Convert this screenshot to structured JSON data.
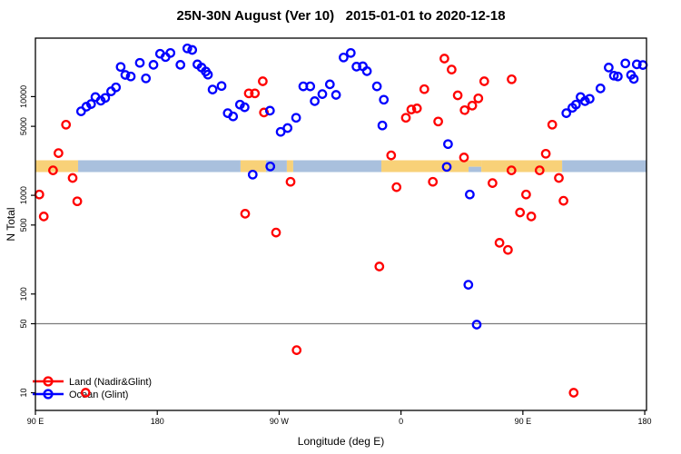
{
  "title": "25N-30N August (Ver 10)   2015-01-01 to 2020-12-18",
  "x_axis": {
    "label": "Longitude (deg E)",
    "ticks": [
      {
        "lon": 90,
        "label": "90 E"
      },
      {
        "lon": 180,
        "label": "180"
      },
      {
        "lon": 270,
        "label": "90 W"
      },
      {
        "lon": 360,
        "label": "0"
      },
      {
        "lon": 450,
        "label": "90 E"
      },
      {
        "lon": 540,
        "label": "180"
      }
    ]
  },
  "y_axis": {
    "label": "N Total",
    "scale": "log",
    "ticks": [
      10,
      50,
      100,
      500,
      1000,
      5000,
      10000
    ]
  },
  "reference_line": {
    "value": 50,
    "color": "#7a7a7a"
  },
  "map_band": {
    "value_center": 2000,
    "colors": {
      "land": "#F8D178",
      "ocean": "#A9C0DD"
    },
    "segments": [
      {
        "from": 90,
        "to": 121.5,
        "surface": "land"
      },
      {
        "from": 121.5,
        "to": 241.5,
        "surface": "ocean"
      },
      {
        "from": 241.5,
        "to": 260.3,
        "surface": "land"
      },
      {
        "from": 260.3,
        "to": 275.7,
        "surface": "ocean"
      },
      {
        "from": 275.7,
        "to": 280.4,
        "surface": "land"
      },
      {
        "from": 280.4,
        "to": 345.5,
        "surface": "ocean"
      },
      {
        "from": 345.5,
        "to": 409.9,
        "surface": "land"
      },
      {
        "from": 409.9,
        "to": 419.3,
        "surface": "mixed"
      },
      {
        "from": 419.3,
        "to": 479.0,
        "surface": "land"
      },
      {
        "from": 479.0,
        "to": 541.3,
        "surface": "ocean"
      }
    ]
  },
  "legend": {
    "items": [
      {
        "label": "Land (Nadir&Glint)",
        "color": "#FF0000"
      },
      {
        "label": "Ocean (Glint)",
        "color": "#0000FF"
      }
    ]
  },
  "chart_data": {
    "type": "scatter",
    "x_unit": "degrees east (wrapped, 90E to 180 spanning 450 deg)",
    "x_range_deg_east": [
      90,
      541
    ],
    "y_range": [
      7,
      39000
    ],
    "marker": {
      "shape": "open-circle",
      "radius": 4.2
    },
    "series": [
      {
        "name": "Land (Nadir&Glint)",
        "color": "#FF0000",
        "points": [
          [
            92.9,
            1020
          ],
          [
            96.2,
            610
          ],
          [
            103.0,
            1790
          ],
          [
            107.0,
            2680
          ],
          [
            112.6,
            5200
          ],
          [
            117.5,
            1500
          ],
          [
            120.9,
            870
          ],
          [
            127.1,
            10
          ],
          [
            244.9,
            650
          ],
          [
            247.6,
            10800
          ],
          [
            252.1,
            10800
          ],
          [
            257.9,
            14300
          ],
          [
            258.8,
            6900
          ],
          [
            267.7,
            420
          ],
          [
            278.4,
            1370
          ],
          [
            282.9,
            27
          ],
          [
            344.0,
            190
          ],
          [
            352.7,
            2540
          ],
          [
            356.7,
            1210
          ],
          [
            363.6,
            6100
          ],
          [
            367.6,
            7400
          ],
          [
            371.8,
            7600
          ],
          [
            377.2,
            11900
          ],
          [
            383.5,
            1370
          ],
          [
            387.5,
            5600
          ],
          [
            392.0,
            24300
          ],
          [
            397.4,
            18800
          ],
          [
            401.9,
            10300
          ],
          [
            406.5,
            2420
          ],
          [
            407.0,
            7300
          ],
          [
            412.6,
            8100
          ],
          [
            417.1,
            9600
          ],
          [
            421.5,
            14300
          ],
          [
            427.6,
            1330
          ],
          [
            432.7,
            330
          ],
          [
            439.0,
            280
          ],
          [
            441.7,
            15000
          ],
          [
            441.6,
            1790
          ],
          [
            447.9,
            670
          ],
          [
            452.4,
            1020
          ],
          [
            456.2,
            610
          ],
          [
            462.4,
            1790
          ],
          [
            466.9,
            2640
          ],
          [
            471.7,
            5200
          ],
          [
            476.6,
            1500
          ],
          [
            480.0,
            880
          ],
          [
            487.5,
            10
          ]
        ]
      },
      {
        "name": "Ocean (Glint)",
        "color": "#0000FF",
        "points": [
          [
            123.7,
            7100
          ],
          [
            127.6,
            7900
          ],
          [
            131.1,
            8400
          ],
          [
            134.3,
            9900
          ],
          [
            138.3,
            9100
          ],
          [
            141.6,
            9700
          ],
          [
            145.9,
            11300
          ],
          [
            149.5,
            12400
          ],
          [
            153.0,
            20000
          ],
          [
            156.4,
            16600
          ],
          [
            160.4,
            16000
          ],
          [
            167.1,
            22000
          ],
          [
            171.6,
            15300
          ],
          [
            177.2,
            21000
          ],
          [
            182.1,
            27200
          ],
          [
            186.1,
            25200
          ],
          [
            189.7,
            27700
          ],
          [
            197.1,
            21000
          ],
          [
            202.2,
            30800
          ],
          [
            205.8,
            29700
          ],
          [
            209.6,
            21200
          ],
          [
            212.7,
            19700
          ],
          [
            215.8,
            18000
          ],
          [
            217.4,
            16700
          ],
          [
            220.8,
            11800
          ],
          [
            227.5,
            12800
          ],
          [
            232.0,
            6800
          ],
          [
            236.0,
            6300
          ],
          [
            241.1,
            8300
          ],
          [
            244.5,
            7800
          ],
          [
            263.2,
            7200
          ],
          [
            271.1,
            4400
          ],
          [
            276.2,
            4800
          ],
          [
            282.5,
            6100
          ],
          [
            287.8,
            12700
          ],
          [
            293.0,
            12700
          ],
          [
            296.3,
            9000
          ],
          [
            301.9,
            10600
          ],
          [
            307.5,
            13300
          ],
          [
            312.0,
            10400
          ],
          [
            317.6,
            24900
          ],
          [
            322.9,
            27700
          ],
          [
            327.1,
            20100
          ],
          [
            331.8,
            20300
          ],
          [
            334.8,
            18100
          ],
          [
            342.2,
            12700
          ],
          [
            347.3,
            9300
          ],
          [
            346.2,
            5100
          ],
          [
            250.5,
            1620
          ],
          [
            263.5,
            1960
          ],
          [
            393.8,
            1940
          ],
          [
            394.7,
            3300
          ],
          [
            410.8,
            1020
          ],
          [
            409.7,
            124
          ],
          [
            415.9,
            49
          ],
          [
            482.1,
            6800
          ],
          [
            486.6,
            7700
          ],
          [
            489.2,
            8300
          ],
          [
            492.6,
            9900
          ],
          [
            495.9,
            9000
          ],
          [
            499.3,
            9500
          ],
          [
            507.3,
            12100
          ],
          [
            513.4,
            19700
          ],
          [
            517.2,
            16300
          ],
          [
            520.1,
            16000
          ],
          [
            525.7,
            21700
          ],
          [
            529.9,
            16600
          ],
          [
            531.9,
            15100
          ],
          [
            534.1,
            21200
          ],
          [
            538.6,
            20900
          ]
        ]
      }
    ]
  }
}
